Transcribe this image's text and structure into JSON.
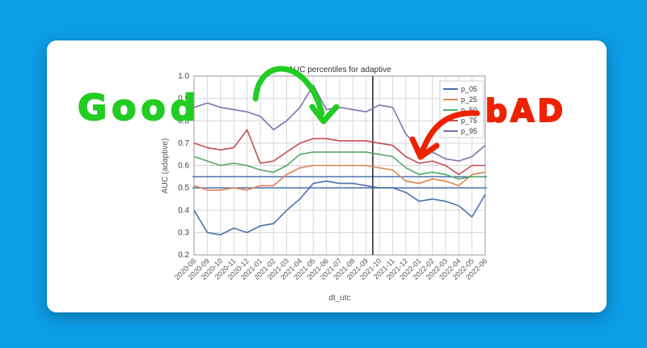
{
  "chart_data": {
    "type": "line",
    "title": "AUC percentiles for adaptive",
    "xlabel": "dt_utc",
    "ylabel": "AUC (adaptive)",
    "ylim": [
      0.2,
      1.0
    ],
    "yticks": [
      "0.2",
      "0.3",
      "0.4",
      "0.5",
      "0.6",
      "0.7",
      "0.8",
      "0.9",
      "1.0"
    ],
    "x_ticks": [
      "2020-08",
      "2020-09",
      "2020-10",
      "2020-11",
      "2020-12",
      "2021-01",
      "2021-02",
      "2021-03",
      "2021-04",
      "2021-05",
      "2021-06",
      "2021-07",
      "2021-08",
      "2021-09",
      "2021-10",
      "2021-11",
      "2021-12",
      "2022-01",
      "2022-02",
      "2022-03",
      "2022-04",
      "2022-05",
      "2022-06"
    ],
    "grid": true,
    "legend_position": "top-right",
    "series": [
      {
        "name": "p_05",
        "color": "#4c72b0",
        "values": [
          0.4,
          0.3,
          0.29,
          0.32,
          0.3,
          0.33,
          0.34,
          0.4,
          0.45,
          0.52,
          0.53,
          0.52,
          0.52,
          0.51,
          0.5,
          0.5,
          0.48,
          0.44,
          0.45,
          0.44,
          0.42,
          0.37,
          0.47
        ]
      },
      {
        "name": "p_25",
        "color": "#dd8452",
        "values": [
          0.51,
          0.49,
          0.49,
          0.5,
          0.49,
          0.51,
          0.51,
          0.56,
          0.59,
          0.6,
          0.6,
          0.6,
          0.6,
          0.6,
          0.59,
          0.58,
          0.53,
          0.52,
          0.54,
          0.53,
          0.51,
          0.56,
          0.57
        ]
      },
      {
        "name": "p_50",
        "color": "#55a868",
        "values": [
          0.64,
          0.62,
          0.6,
          0.61,
          0.6,
          0.58,
          0.57,
          0.6,
          0.65,
          0.66,
          0.66,
          0.66,
          0.66,
          0.66,
          0.65,
          0.64,
          0.59,
          0.56,
          0.57,
          0.56,
          0.54,
          0.55,
          0.55
        ]
      },
      {
        "name": "p_75",
        "color": "#c44e52",
        "values": [
          0.7,
          0.68,
          0.67,
          0.68,
          0.76,
          0.61,
          0.62,
          0.66,
          0.7,
          0.72,
          0.72,
          0.71,
          0.71,
          0.71,
          0.7,
          0.69,
          0.64,
          0.61,
          0.62,
          0.6,
          0.56,
          0.6,
          0.6
        ]
      },
      {
        "name": "p_95",
        "color": "#8172b2",
        "values": [
          0.86,
          0.88,
          0.86,
          0.85,
          0.84,
          0.82,
          0.76,
          0.8,
          0.86,
          0.96,
          0.85,
          0.86,
          0.85,
          0.84,
          0.87,
          0.86,
          0.74,
          0.68,
          0.66,
          0.63,
          0.62,
          0.64,
          0.69
        ]
      }
    ],
    "hlines": [
      {
        "value": 0.55,
        "color": "#4c72b0"
      },
      {
        "value": 0.5,
        "color": "#4c72b0"
      }
    ],
    "vline": {
      "x_index": 13.5,
      "color": "#222222"
    }
  },
  "annotations": {
    "good_text": "Good",
    "bad_text": "bAD"
  }
}
